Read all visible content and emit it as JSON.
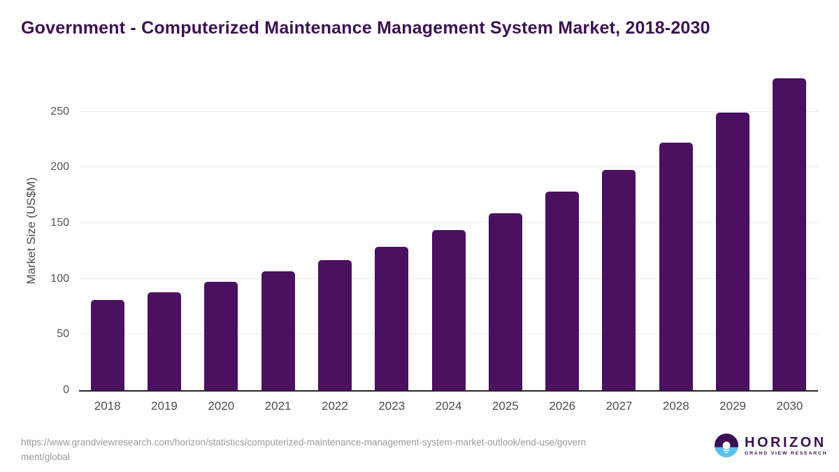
{
  "chart_data": {
    "type": "bar",
    "title": "Government - Computerized Maintenance Management System Market, 2018-2030",
    "categories": [
      "2018",
      "2019",
      "2020",
      "2021",
      "2022",
      "2023",
      "2024",
      "2025",
      "2026",
      "2027",
      "2028",
      "2029",
      "2030"
    ],
    "values": [
      81,
      88,
      97,
      107,
      117,
      129,
      144,
      159,
      178,
      198,
      222,
      249,
      280
    ],
    "xlabel": "",
    "ylabel": "Market Size (US$M)",
    "ylim": [
      0,
      287.5
    ],
    "yticks": [
      0,
      50,
      100,
      150,
      200,
      250
    ],
    "grid": "horizontal",
    "legend_position": "none",
    "bar_color": "#4B1060"
  },
  "colors": {
    "title_text": "#3B1152",
    "bar": "#4B1060",
    "axis_line": "#262626",
    "gridline": "#E8E8E8",
    "tick_text": "#555555",
    "footer_text": "#9A9A9A",
    "logo_purple": "#3A1053",
    "logo_blue": "#5BC2F0"
  },
  "footer": {
    "url_lines": [
      "https://www.grandviewresearch.com/horizon/statistics/computerized-maintenance-management-system-market-outlook/end-use/govern",
      "ment/global"
    ],
    "logo": {
      "brand": "HORIZON",
      "sub_brand": "GRAND VIEW RESEARCH"
    }
  }
}
